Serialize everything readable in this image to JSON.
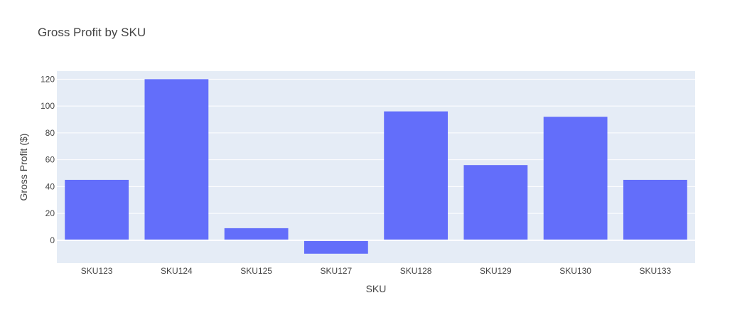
{
  "chart_data": {
    "type": "bar",
    "title": "Gross Profit by SKU",
    "xlabel": "SKU",
    "ylabel": "Gross Profit ($)",
    "categories": [
      "SKU123",
      "SKU124",
      "SKU125",
      "SKU127",
      "SKU128",
      "SKU129",
      "SKU130",
      "SKU133"
    ],
    "values": [
      45,
      120,
      9,
      -10,
      96,
      56,
      92,
      45
    ],
    "ylim": [
      -17,
      126
    ],
    "yticks": [
      0,
      20,
      40,
      60,
      80,
      100,
      120
    ],
    "grid": true,
    "legend": "none",
    "colors": {
      "bar": "#636efa",
      "plot_bg": "#e5ecf6",
      "grid": "#ffffff",
      "text": "#444444"
    }
  }
}
